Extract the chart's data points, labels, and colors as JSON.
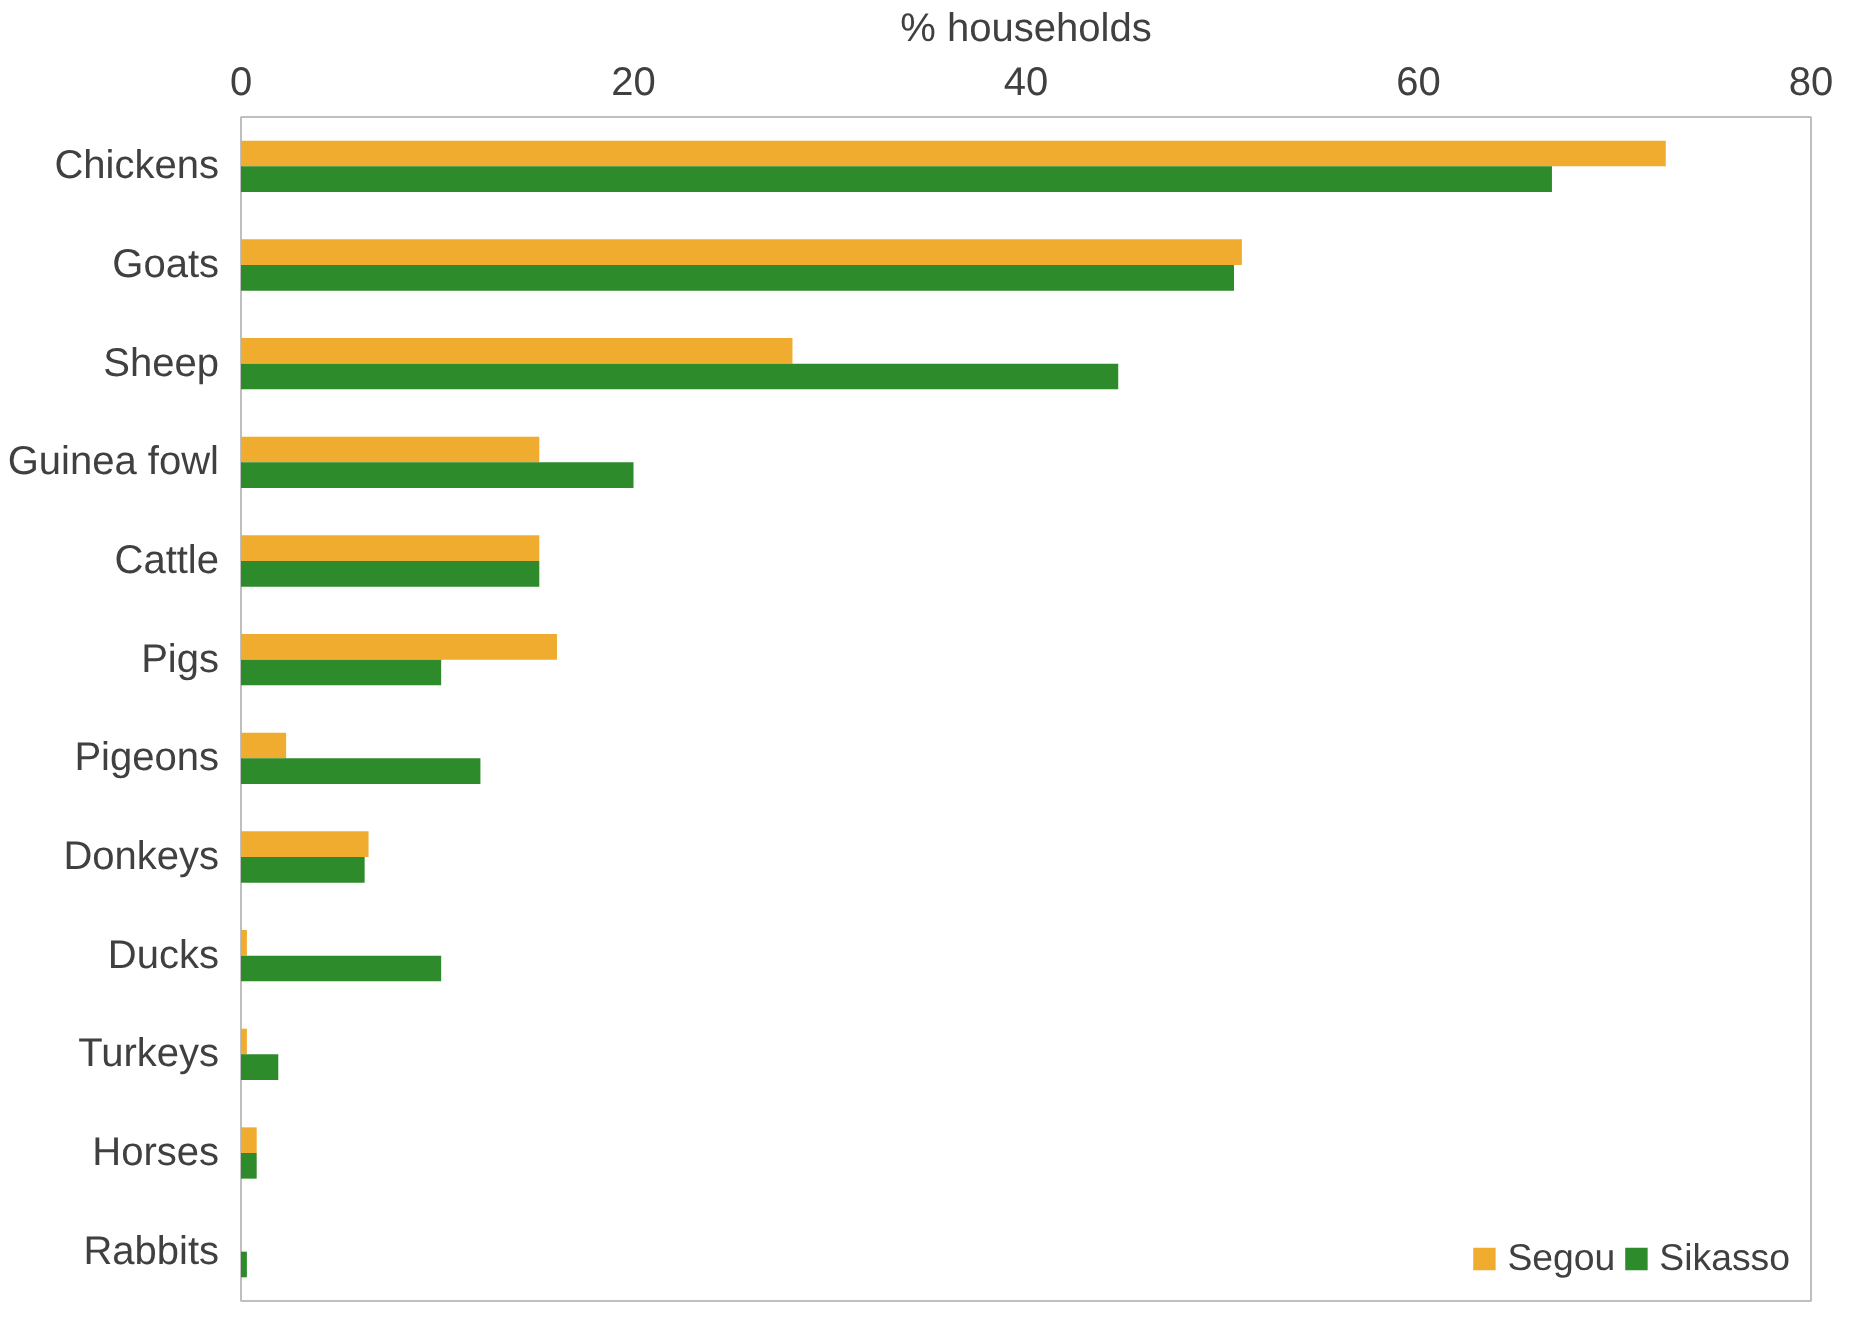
{
  "chart_data": {
    "type": "bar",
    "orientation": "horizontal",
    "xlabel": "% households",
    "categories": [
      "Chickens",
      "Goats",
      "Sheep",
      "Guinea fowl",
      "Cattle",
      "Pigs",
      "Pigeons",
      "Donkeys",
      "Ducks",
      "Turkeys",
      "Horses",
      "Rabbits"
    ],
    "series": [
      {
        "name": "Segou",
        "color": "#efac2f",
        "values": [
          72.6,
          51.0,
          28.1,
          15.2,
          15.2,
          16.1,
          2.3,
          6.5,
          0.3,
          0.3,
          0.8,
          0
        ]
      },
      {
        "name": "Sikasso",
        "color": "#2e8b2b",
        "values": [
          66.8,
          50.6,
          44.7,
          20.0,
          15.2,
          10.2,
          12.2,
          6.3,
          10.2,
          1.9,
          0.8,
          0.3
        ]
      }
    ],
    "xlim": [
      0,
      80
    ],
    "xticks": [
      0,
      20,
      40,
      60,
      80
    ],
    "grid": false,
    "legend": "bottom right"
  }
}
